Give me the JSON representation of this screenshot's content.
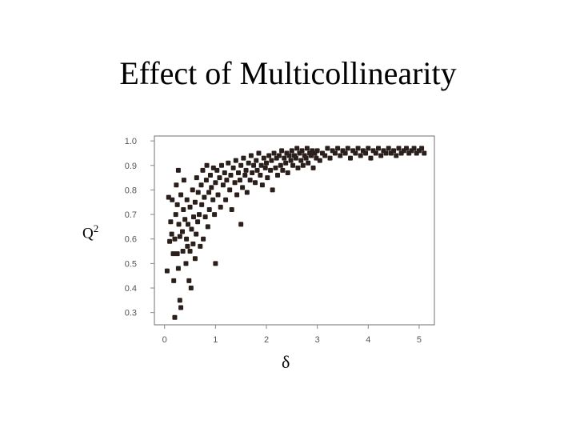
{
  "slide": {
    "title": "Effect of Multicollinearity"
  },
  "chart_data": {
    "type": "scatter",
    "title": "Effect of Multicollinearity",
    "xlabel": "δ",
    "ylabel": "Q",
    "ylabel_superscript": "2",
    "xlim": [
      -0.2,
      5.3
    ],
    "ylim": [
      0.25,
      1.02
    ],
    "xticks": [
      0,
      1,
      2,
      3,
      4,
      5
    ],
    "yticks": [
      0.3,
      0.4,
      0.5,
      0.6,
      0.7,
      0.8,
      0.9,
      1.0
    ],
    "ytick_labels": [
      "0.3",
      "0.4",
      "0.5",
      "0.6",
      "0.7",
      "0.8",
      "0.9",
      "1.0"
    ],
    "grid": false,
    "marker_color": "#2b1f1c",
    "points": [
      [
        0.05,
        0.47
      ],
      [
        0.08,
        0.77
      ],
      [
        0.1,
        0.59
      ],
      [
        0.12,
        0.67
      ],
      [
        0.14,
        0.62
      ],
      [
        0.15,
        0.76
      ],
      [
        0.17,
        0.54
      ],
      [
        0.18,
        0.43
      ],
      [
        0.2,
        0.28
      ],
      [
        0.2,
        0.6
      ],
      [
        0.22,
        0.7
      ],
      [
        0.23,
        0.82
      ],
      [
        0.25,
        0.74
      ],
      [
        0.25,
        0.54
      ],
      [
        0.27,
        0.48
      ],
      [
        0.27,
        0.88
      ],
      [
        0.28,
        0.66
      ],
      [
        0.3,
        0.35
      ],
      [
        0.3,
        0.61
      ],
      [
        0.32,
        0.32
      ],
      [
        0.32,
        0.78
      ],
      [
        0.35,
        0.63
      ],
      [
        0.36,
        0.55
      ],
      [
        0.37,
        0.72
      ],
      [
        0.38,
        0.84
      ],
      [
        0.4,
        0.68
      ],
      [
        0.42,
        0.5
      ],
      [
        0.43,
        0.6
      ],
      [
        0.44,
        0.76
      ],
      [
        0.45,
        0.57
      ],
      [
        0.46,
        0.66
      ],
      [
        0.48,
        0.43
      ],
      [
        0.5,
        0.55
      ],
      [
        0.5,
        0.73
      ],
      [
        0.52,
        0.4
      ],
      [
        0.53,
        0.64
      ],
      [
        0.55,
        0.8
      ],
      [
        0.56,
        0.58
      ],
      [
        0.57,
        0.69
      ],
      [
        0.6,
        0.75
      ],
      [
        0.6,
        0.52
      ],
      [
        0.62,
        0.62
      ],
      [
        0.63,
        0.85
      ],
      [
        0.65,
        0.67
      ],
      [
        0.66,
        0.79
      ],
      [
        0.68,
        0.7
      ],
      [
        0.7,
        0.57
      ],
      [
        0.72,
        0.82
      ],
      [
        0.73,
        0.74
      ],
      [
        0.75,
        0.88
      ],
      [
        0.76,
        0.6
      ],
      [
        0.78,
        0.77
      ],
      [
        0.8,
        0.69
      ],
      [
        0.82,
        0.84
      ],
      [
        0.83,
        0.9
      ],
      [
        0.85,
        0.65
      ],
      [
        0.87,
        0.79
      ],
      [
        0.88,
        0.72
      ],
      [
        0.9,
        0.86
      ],
      [
        0.92,
        0.81
      ],
      [
        0.95,
        0.76
      ],
      [
        0.96,
        0.89
      ],
      [
        0.98,
        0.7
      ],
      [
        1.0,
        0.83
      ],
      [
        1.0,
        0.5
      ],
      [
        1.03,
        0.88
      ],
      [
        1.05,
        0.78
      ],
      [
        1.08,
        0.85
      ],
      [
        1.1,
        0.73
      ],
      [
        1.12,
        0.9
      ],
      [
        1.15,
        0.82
      ],
      [
        1.18,
        0.87
      ],
      [
        1.2,
        0.76
      ],
      [
        1.22,
        0.84
      ],
      [
        1.25,
        0.91
      ],
      [
        1.28,
        0.8
      ],
      [
        1.3,
        0.86
      ],
      [
        1.32,
        0.72
      ],
      [
        1.35,
        0.89
      ],
      [
        1.38,
        0.83
      ],
      [
        1.4,
        0.92
      ],
      [
        1.42,
        0.78
      ],
      [
        1.45,
        0.87
      ],
      [
        1.48,
        0.84
      ],
      [
        1.5,
        0.9
      ],
      [
        1.5,
        0.66
      ],
      [
        1.53,
        0.81
      ],
      [
        1.55,
        0.93
      ],
      [
        1.58,
        0.86
      ],
      [
        1.6,
        0.88
      ],
      [
        1.62,
        0.79
      ],
      [
        1.65,
        0.91
      ],
      [
        1.68,
        0.84
      ],
      [
        1.7,
        0.94
      ],
      [
        1.72,
        0.87
      ],
      [
        1.75,
        0.9
      ],
      [
        1.78,
        0.83
      ],
      [
        1.8,
        0.92
      ],
      [
        1.82,
        0.88
      ],
      [
        1.85,
        0.95
      ],
      [
        1.88,
        0.86
      ],
      [
        1.9,
        0.9
      ],
      [
        1.92,
        0.82
      ],
      [
        1.95,
        0.93
      ],
      [
        1.98,
        0.89
      ],
      [
        2.0,
        0.91
      ],
      [
        2.02,
        0.85
      ],
      [
        2.05,
        0.94
      ],
      [
        2.08,
        0.88
      ],
      [
        2.1,
        0.92
      ],
      [
        2.12,
        0.8
      ],
      [
        2.15,
        0.95
      ],
      [
        2.18,
        0.89
      ],
      [
        2.2,
        0.93
      ],
      [
        2.22,
        0.86
      ],
      [
        2.25,
        0.94
      ],
      [
        2.28,
        0.9
      ],
      [
        2.3,
        0.96
      ],
      [
        2.32,
        0.88
      ],
      [
        2.35,
        0.93
      ],
      [
        2.38,
        0.91
      ],
      [
        2.4,
        0.95
      ],
      [
        2.42,
        0.87
      ],
      [
        2.45,
        0.94
      ],
      [
        2.48,
        0.92
      ],
      [
        2.5,
        0.96
      ],
      [
        2.52,
        0.9
      ],
      [
        2.55,
        0.94
      ],
      [
        2.58,
        0.93
      ],
      [
        2.6,
        0.97
      ],
      [
        2.62,
        0.89
      ],
      [
        2.65,
        0.95
      ],
      [
        2.68,
        0.92
      ],
      [
        2.7,
        0.96
      ],
      [
        2.72,
        0.9
      ],
      [
        2.75,
        0.94
      ],
      [
        2.78,
        0.93
      ],
      [
        2.8,
        0.97
      ],
      [
        2.82,
        0.91
      ],
      [
        2.85,
        0.95
      ],
      [
        2.88,
        0.94
      ],
      [
        2.9,
        0.96
      ],
      [
        2.92,
        0.89
      ],
      [
        2.95,
        0.95
      ],
      [
        2.98,
        0.93
      ],
      [
        3.0,
        0.96
      ],
      [
        3.05,
        0.92
      ],
      [
        3.1,
        0.95
      ],
      [
        3.15,
        0.94
      ],
      [
        3.2,
        0.97
      ],
      [
        3.25,
        0.93
      ],
      [
        3.3,
        0.96
      ],
      [
        3.35,
        0.95
      ],
      [
        3.4,
        0.97
      ],
      [
        3.45,
        0.94
      ],
      [
        3.5,
        0.96
      ],
      [
        3.55,
        0.95
      ],
      [
        3.6,
        0.97
      ],
      [
        3.65,
        0.93
      ],
      [
        3.7,
        0.96
      ],
      [
        3.75,
        0.95
      ],
      [
        3.8,
        0.97
      ],
      [
        3.85,
        0.94
      ],
      [
        3.9,
        0.96
      ],
      [
        3.95,
        0.95
      ],
      [
        4.0,
        0.97
      ],
      [
        4.05,
        0.93
      ],
      [
        4.1,
        0.96
      ],
      [
        4.15,
        0.95
      ],
      [
        4.2,
        0.97
      ],
      [
        4.25,
        0.94
      ],
      [
        4.3,
        0.96
      ],
      [
        4.35,
        0.95
      ],
      [
        4.4,
        0.97
      ],
      [
        4.45,
        0.95
      ],
      [
        4.5,
        0.96
      ],
      [
        4.55,
        0.94
      ],
      [
        4.6,
        0.97
      ],
      [
        4.65,
        0.95
      ],
      [
        4.7,
        0.96
      ],
      [
        4.75,
        0.97
      ],
      [
        4.8,
        0.95
      ],
      [
        4.85,
        0.96
      ],
      [
        4.9,
        0.97
      ],
      [
        4.95,
        0.95
      ],
      [
        5.0,
        0.96
      ],
      [
        5.05,
        0.97
      ],
      [
        5.1,
        0.95
      ]
    ]
  }
}
